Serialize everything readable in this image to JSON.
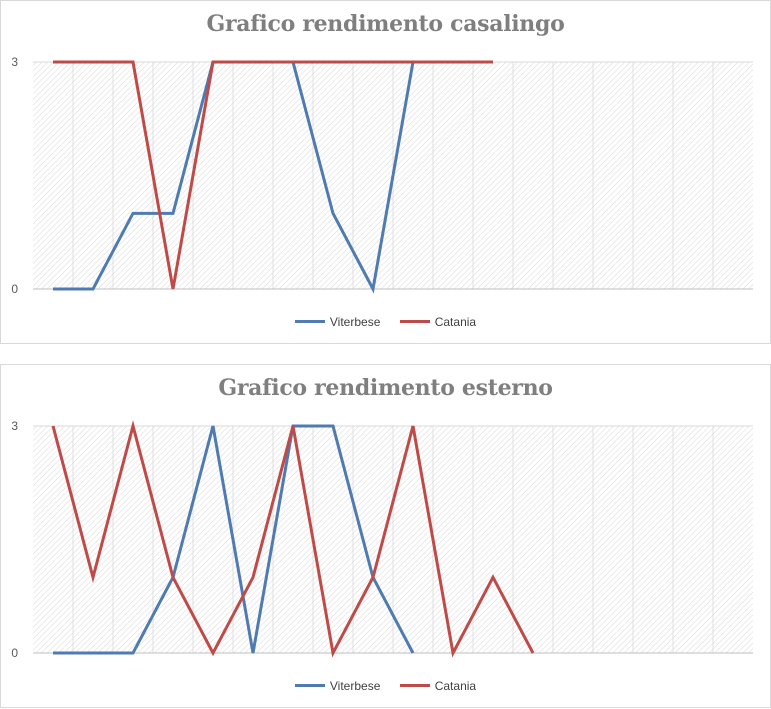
{
  "colors": {
    "viterbese": "#4f7bb0",
    "catania": "#bf4b48",
    "hatch": "#d8d8d8",
    "gridline": "#d9d9d9",
    "title": "#7f7f7f"
  },
  "chart_data": [
    {
      "type": "line",
      "title": "Grafico rendimento casalingo",
      "xlabel": "",
      "ylabel": "",
      "ylim": [
        0,
        3
      ],
      "yticks": [
        "0",
        "3"
      ],
      "x_count": 18,
      "legend_position": "bottom",
      "grid": true,
      "series": [
        {
          "name": "Viterbese",
          "values": [
            0,
            0,
            1,
            1,
            3,
            3,
            3,
            1,
            0,
            3,
            3,
            3
          ]
        },
        {
          "name": "Catania",
          "values": [
            3,
            3,
            3,
            0,
            3,
            3,
            3,
            3,
            3,
            3,
            3,
            3
          ]
        }
      ]
    },
    {
      "type": "line",
      "title": "Grafico rendimento esterno",
      "xlabel": "",
      "ylabel": "",
      "ylim": [
        0,
        3
      ],
      "yticks": [
        "0",
        "3"
      ],
      "x_count": 18,
      "legend_position": "bottom",
      "grid": true,
      "series": [
        {
          "name": "Viterbese",
          "values": [
            0,
            0,
            0,
            1,
            3,
            0,
            3,
            3,
            1,
            0
          ]
        },
        {
          "name": "Catania",
          "values": [
            3,
            1,
            3,
            1,
            0,
            1,
            3,
            0,
            1,
            3,
            0,
            1,
            0
          ]
        }
      ]
    }
  ]
}
